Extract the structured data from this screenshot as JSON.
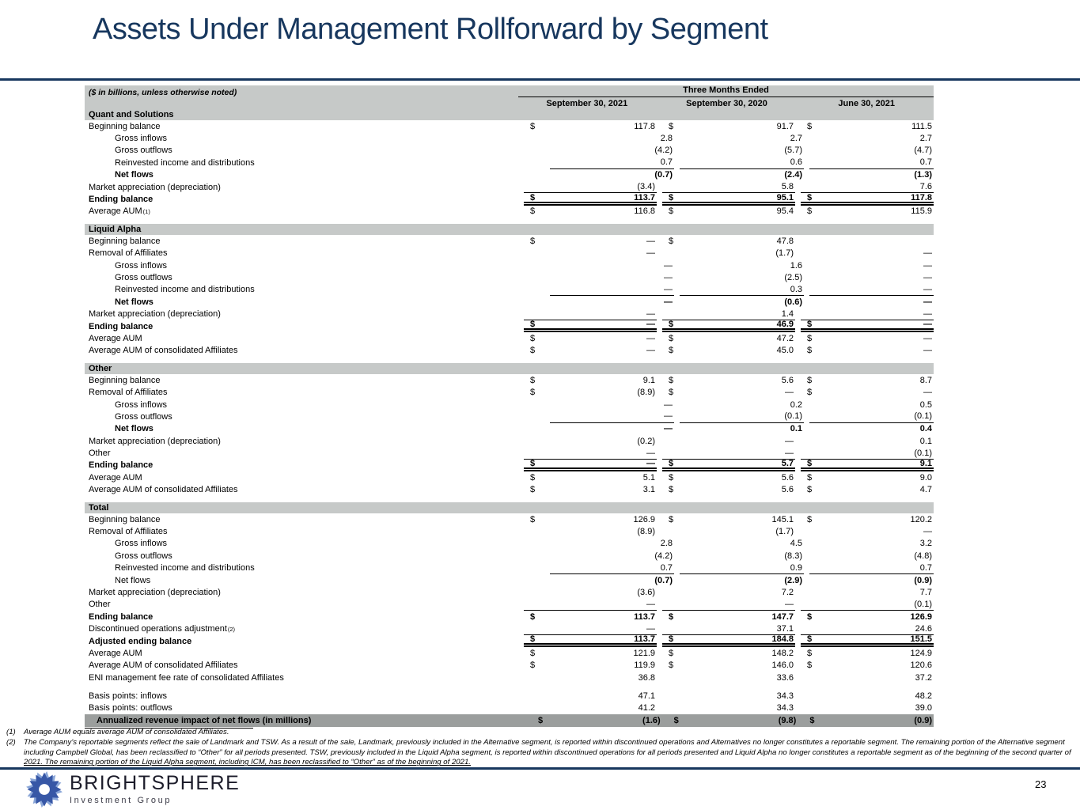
{
  "title": "Assets Under Management Rollforward by Segment",
  "table": {
    "units_note": "($ in billions, unless otherwise noted)",
    "period_header": "Three Months Ended",
    "columns": [
      "September 30, 2021",
      "September 30, 2020",
      "June 30, 2021"
    ],
    "sections": [
      {
        "name": "Quant and Solutions",
        "rows": [
          {
            "label": "Beginning balance",
            "indent": 0,
            "dollar": true,
            "values": [
              "117.8",
              "91.7",
              "111.5"
            ]
          },
          {
            "label": "Gross inflows",
            "indent": 1,
            "values": [
              "2.8",
              "2.7",
              "2.7"
            ]
          },
          {
            "label": "Gross outflows",
            "indent": 1,
            "values": [
              "(4.2)",
              "(5.7)",
              "(4.7)"
            ]
          },
          {
            "label": "Reinvested income and distributions",
            "indent": 1,
            "values": [
              "0.7",
              "0.6",
              "0.7"
            ],
            "border": "single"
          },
          {
            "label": "Net flows",
            "indent": 1,
            "bold_label": true,
            "bold_values": true,
            "values": [
              "(0.7)",
              "(2.4)",
              "(1.3)"
            ]
          },
          {
            "label": "Market appreciation (depreciation)",
            "indent": 0,
            "values": [
              "(3.4)",
              "5.8",
              "7.6"
            ],
            "border": "single"
          },
          {
            "label": "Ending balance",
            "indent": 0,
            "bold_label": true,
            "bold_values": true,
            "dollar": true,
            "values": [
              "113.7",
              "95.1",
              "117.8"
            ],
            "border": "double"
          },
          {
            "label": "Average AUM",
            "sup": "(1)",
            "indent": 0,
            "dollar": true,
            "values": [
              "116.8",
              "95.4",
              "115.9"
            ]
          }
        ]
      },
      {
        "name": "Liquid Alpha",
        "rows": [
          {
            "label": "Beginning balance",
            "indent": 0,
            "dollar": true,
            "values": [
              "—",
              "47.8",
              ""
            ]
          },
          {
            "label": "Removal of Affiliates",
            "indent": 0,
            "values": [
              "—",
              "(1.7)",
              "—"
            ]
          },
          {
            "label": "Gross inflows",
            "indent": 1,
            "values": [
              "—",
              "1.6",
              "—"
            ]
          },
          {
            "label": "Gross outflows",
            "indent": 1,
            "values": [
              "—",
              "(2.5)",
              "—"
            ]
          },
          {
            "label": "Reinvested income and distributions",
            "indent": 1,
            "values": [
              "—",
              "0.3",
              "—"
            ],
            "border": "single"
          },
          {
            "label": "Net flows",
            "indent": 1,
            "bold_label": true,
            "bold_values": true,
            "values": [
              "—",
              "(0.6)",
              "—"
            ]
          },
          {
            "label": "Market appreciation (depreciation)",
            "indent": 0,
            "values": [
              "—",
              "1.4",
              "—"
            ],
            "border": "single"
          },
          {
            "label": "Ending balance",
            "indent": 0,
            "bold_label": true,
            "bold_values": true,
            "dollar": true,
            "values": [
              "—",
              "46.9",
              "—"
            ],
            "border": "double"
          },
          {
            "label": "Average AUM",
            "indent": 0,
            "dollar": true,
            "values": [
              "—",
              "47.2",
              "—"
            ]
          },
          {
            "label": "Average AUM of consolidated Affiliates",
            "indent": 0,
            "dollar": true,
            "values": [
              "—",
              "45.0",
              "—"
            ]
          }
        ]
      },
      {
        "name": "Other",
        "rows": [
          {
            "label": "Beginning balance",
            "indent": 0,
            "dollar": true,
            "values": [
              "9.1",
              "5.6",
              "8.7"
            ]
          },
          {
            "label": "Removal of Affiliates",
            "indent": 0,
            "dollar": true,
            "values": [
              "(8.9)",
              "—",
              "—"
            ]
          },
          {
            "label": "Gross inflows",
            "indent": 1,
            "values": [
              "—",
              "0.2",
              "0.5"
            ]
          },
          {
            "label": "Gross outflows",
            "indent": 1,
            "values": [
              "—",
              "(0.1)",
              "(0.1)"
            ],
            "border": "single"
          },
          {
            "label": "Net flows",
            "indent": 1,
            "bold_label": true,
            "bold_values": true,
            "values": [
              "—",
              "0.1",
              "0.4"
            ]
          },
          {
            "label": "Market appreciation (depreciation)",
            "indent": 0,
            "values": [
              "(0.2)",
              "—",
              "0.1"
            ]
          },
          {
            "label": "Other",
            "indent": 0,
            "values": [
              "—",
              "—",
              "(0.1)"
            ],
            "border": "single"
          },
          {
            "label": "Ending balance",
            "indent": 0,
            "bold_label": true,
            "bold_values": true,
            "dollar": true,
            "values": [
              "—",
              "5.7",
              "9.1"
            ],
            "border": "double"
          },
          {
            "label": "Average AUM",
            "indent": 0,
            "dollar": true,
            "values": [
              "5.1",
              "5.6",
              "9.0"
            ]
          },
          {
            "label": "Average AUM of consolidated Affiliates",
            "indent": 0,
            "dollar": true,
            "values": [
              "3.1",
              "5.6",
              "4.7"
            ]
          }
        ]
      },
      {
        "name": "Total",
        "rows": [
          {
            "label": "Beginning balance",
            "indent": 0,
            "dollar": true,
            "values": [
              "126.9",
              "145.1",
              "120.2"
            ]
          },
          {
            "label": "Removal of Affiliates",
            "indent": 0,
            "values": [
              "(8.9)",
              "(1.7)",
              "—"
            ]
          },
          {
            "label": "Gross inflows",
            "indent": 1,
            "values": [
              "2.8",
              "4.5",
              "3.2"
            ]
          },
          {
            "label": "Gross outflows",
            "indent": 1,
            "values": [
              "(4.2)",
              "(8.3)",
              "(4.8)"
            ]
          },
          {
            "label": "Reinvested income and distributions",
            "indent": 1,
            "values": [
              "0.7",
              "0.9",
              "0.7"
            ],
            "border": "single"
          },
          {
            "label": "Net flows",
            "indent": 1,
            "bold_values": true,
            "values": [
              "(0.7)",
              "(2.9)",
              "(0.9)"
            ]
          },
          {
            "label": "Market appreciation (depreciation)",
            "indent": 0,
            "values": [
              "(3.6)",
              "7.2",
              "7.7"
            ]
          },
          {
            "label": "Other",
            "indent": 0,
            "values": [
              "—",
              "—",
              "(0.1)"
            ],
            "border": "single"
          },
          {
            "label": "Ending balance",
            "indent": 0,
            "bold_label": true,
            "bold_values": true,
            "dollar": true,
            "values": [
              "113.7",
              "147.7",
              "126.9"
            ]
          },
          {
            "label": "Discontinued operations adjustment",
            "sup": "(2)",
            "indent": 0,
            "values": [
              "—",
              "37.1",
              "24.6"
            ],
            "border": "single"
          },
          {
            "label": "Adjusted ending balance",
            "indent": 0,
            "bold_label": true,
            "bold_values": true,
            "dollar": true,
            "values": [
              "113.7",
              "184.8",
              "151.5"
            ],
            "border": "double"
          },
          {
            "label": "Average AUM",
            "indent": 0,
            "dollar": true,
            "values": [
              "121.9",
              "148.2",
              "124.9"
            ]
          },
          {
            "label": "Average AUM of consolidated Affiliates",
            "indent": 0,
            "dollar": true,
            "values": [
              "119.9",
              "146.0",
              "120.6"
            ]
          },
          {
            "label": "ENI management fee rate of consolidated Affiliates",
            "indent": 0,
            "values": [
              "36.8",
              "33.6",
              "37.2"
            ]
          },
          {
            "type": "spacer"
          },
          {
            "label": "Basis points: inflows",
            "indent": 0,
            "values": [
              "47.1",
              "34.3",
              "48.2"
            ]
          },
          {
            "label": "Basis points: outflows",
            "indent": 0,
            "values": [
              "41.2",
              "34.3",
              "39.0"
            ]
          },
          {
            "label": "Annualized revenue impact of net flows (in millions)",
            "indent": 0,
            "dark": true,
            "bold_label": true,
            "bold_values": true,
            "dollar": true,
            "values": [
              "(1.6)",
              "(9.8)",
              "(0.9)"
            ]
          }
        ]
      }
    ]
  },
  "footnotes": [
    {
      "num": "(1)",
      "lines": [
        "Average AUM equals average AUM of consolidated Affiliates."
      ]
    },
    {
      "num": "(2)",
      "lines": [
        "The Company’s reportable segments reflect the sale of Landmark and TSW. As a result of the sale, Landmark, previously included in the Alternative segment, is reported within discontinued operations and Alternatives no longer constitutes a reportable segment. The remaining portion of the Alternative segment",
        "including Campbell Global, has been reclassified to “Other” for all periods presented. TSW, previously included in the Liquid Alpha segment, is reported within discontinued operations for all periods presented and Liquid Alpha no longer constitutes a reportable segment as of the beginning of the second quarter of",
        "2021. The remaining portion of the Liquid Alpha segment, including ICM, has been reclassified to “Other” as of the beginning of 2021."
      ]
    }
  ],
  "footer": {
    "brand": "BRIGHTSPHERE",
    "brand_sub": "Investment Group",
    "page_number": "23"
  },
  "colors": {
    "navy": "#17375e",
    "band_gray": "#c6c9c8",
    "dark_row_gray": "#9b9e9d",
    "logo_blue": "#3757a6",
    "logo_light_blue": "#8aa6d8"
  }
}
